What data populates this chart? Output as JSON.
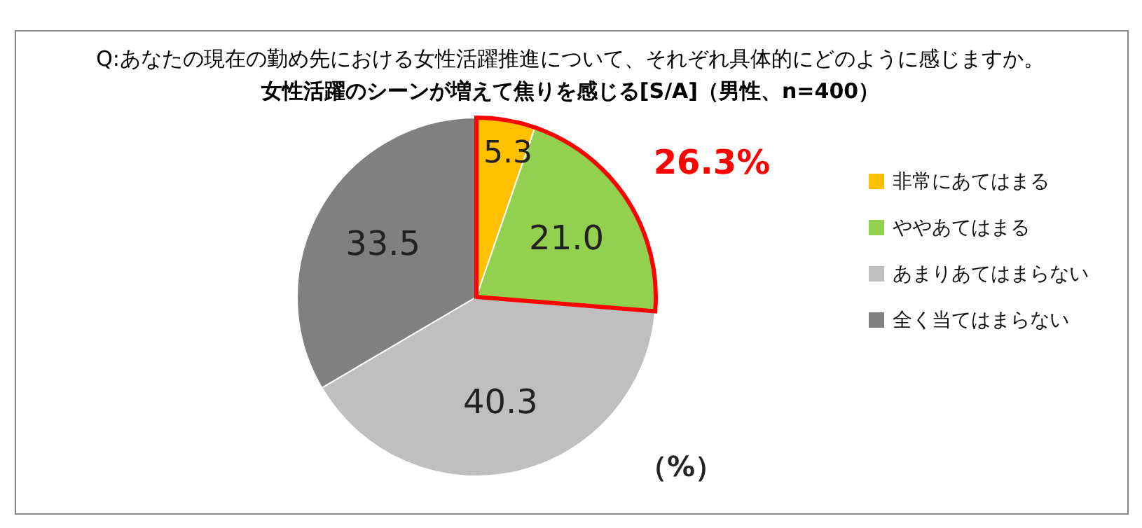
{
  "chart_data": {
    "type": "pie",
    "title": "Q:あなたの現在の勤め先における女性活躍推進について、それぞれ具体的にどのように感じますか。",
    "subtitle": "女性活躍のシーンが増えて焦りを感じる[S/A]（男性、n=400）",
    "categories": [
      "非常にあてはまる",
      "ややあてはまる",
      "あまりあてはまらない",
      "全く当てはまらない"
    ],
    "values": [
      5.3,
      21.0,
      40.3,
      33.5
    ],
    "colors": [
      "#ffc000",
      "#92d050",
      "#bfbfbf",
      "#808080"
    ],
    "value_labels": [
      "5.3",
      "21.0",
      "40.3",
      "33.5"
    ],
    "legend": "right",
    "annotations": [
      "26.3%",
      "（%）"
    ]
  }
}
